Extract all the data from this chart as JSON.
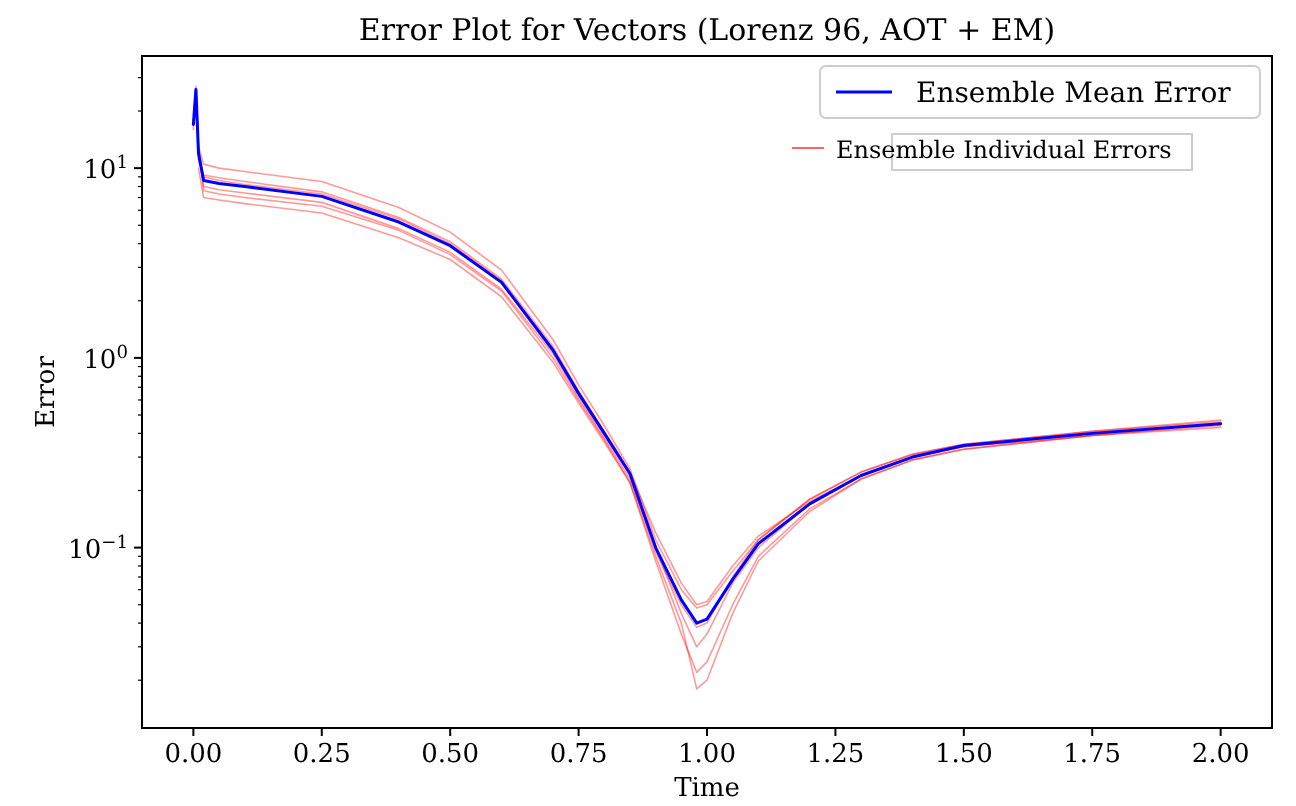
{
  "chart_data": {
    "type": "line",
    "title": "Error Plot for Vectors (Lorenz 96, AOT + EM)",
    "xlabel": "Time",
    "ylabel": "Error",
    "log": "y",
    "grid": false,
    "legend": "top right",
    "line_style": "solid",
    "marker": "none",
    "x": [
      0,
      0.005,
      0.01,
      0.02,
      0.05,
      0.1,
      0.25,
      0.4,
      0.5,
      0.6,
      0.7,
      0.75,
      0.8,
      0.85,
      0.9,
      0.95,
      0.98,
      1.0,
      1.05,
      1.1,
      1.2,
      1.3,
      1.4,
      1.5,
      1.75,
      2.0
    ],
    "xlim": [
      -0.1,
      2.1
    ],
    "xticks": [
      {
        "value": 0,
        "label": "0.00"
      },
      {
        "value": 0.25,
        "label": "0.25"
      },
      {
        "value": 0.5,
        "label": "0.50"
      },
      {
        "value": 0.75,
        "label": "0.75"
      },
      {
        "value": 1,
        "label": "1.00"
      },
      {
        "value": 1.25,
        "label": "1.25"
      },
      {
        "value": 1.5,
        "label": "1.50"
      },
      {
        "value": 1.75,
        "label": "1.75"
      },
      {
        "value": 2,
        "label": "2.00"
      }
    ],
    "ylim": [
      0.0112,
      39
    ],
    "yticks": [
      {
        "value": 0.02,
        "label": null
      },
      {
        "value": 0.03,
        "label": null
      },
      {
        "value": 0.04,
        "label": null
      },
      {
        "value": 0.05,
        "label": null
      },
      {
        "value": 0.06,
        "label": null
      },
      {
        "value": 0.07,
        "label": null
      },
      {
        "value": 0.08,
        "label": null
      },
      {
        "value": 0.09,
        "label": null
      },
      {
        "value": 0.1,
        "label": "10$^{−1}$"
      },
      {
        "value": 0.2,
        "label": null
      },
      {
        "value": 0.3,
        "label": null
      },
      {
        "value": 0.4,
        "label": null
      },
      {
        "value": 0.5,
        "label": null
      },
      {
        "value": 0.6,
        "label": null
      },
      {
        "value": 0.7,
        "label": null
      },
      {
        "value": 0.8,
        "label": null
      },
      {
        "value": 0.9,
        "label": null
      },
      {
        "value": 1,
        "label": "10$^{0}$"
      },
      {
        "value": 2,
        "label": null
      },
      {
        "value": 3,
        "label": null
      },
      {
        "value": 4,
        "label": null
      },
      {
        "value": 5,
        "label": null
      },
      {
        "value": 6,
        "label": null
      },
      {
        "value": 7,
        "label": null
      },
      {
        "value": 8,
        "label": null
      },
      {
        "value": 9,
        "label": null
      },
      {
        "value": 10,
        "label": "10$^{1}$"
      },
      {
        "value": 20,
        "label": null
      },
      {
        "value": 30,
        "label": null
      }
    ],
    "series": [
      {
        "name": "Ensemble Mean Error",
        "color": "#0000ff",
        "values": [
          17,
          26,
          12,
          8.6,
          8.3,
          8.0,
          7.1,
          5.2,
          3.9,
          2.5,
          1.1,
          0.65,
          0.4,
          0.245,
          0.1,
          0.053,
          0.04,
          0.042,
          0.068,
          0.105,
          0.17,
          0.24,
          0.3,
          0.345,
          0.4,
          0.45
        ]
      },
      {
        "name": "Ensemble Individual Errors",
        "color": "#ff0000",
        "values": [
          null,
          null,
          13,
          10.5,
          10,
          9.6,
          8.5,
          6.2,
          4.6,
          2.9,
          1.25,
          0.72,
          0.44,
          0.26,
          0.11,
          0.06,
          0.048,
          0.05,
          0.075,
          0.11,
          0.18,
          0.25,
          0.31,
          0.35,
          0.41,
          0.46
        ]
      },
      {
        "color": "#ff0000",
        "values": [
          null,
          null,
          10,
          7.0,
          6.8,
          6.5,
          5.8,
          4.3,
          3.3,
          2.1,
          0.95,
          0.58,
          0.36,
          0.22,
          0.085,
          0.035,
          0.022,
          0.025,
          0.05,
          0.09,
          0.16,
          0.23,
          0.29,
          0.33,
          0.39,
          0.44
        ]
      },
      {
        "color": "#ff0000",
        "values": [
          16,
          25,
          11,
          9.2,
          8.9,
          8.5,
          7.5,
          5.5,
          4.1,
          2.6,
          1.15,
          0.67,
          0.41,
          0.25,
          0.1,
          0.045,
          0.03,
          0.035,
          0.065,
          0.1,
          0.17,
          0.24,
          0.3,
          0.34,
          0.4,
          0.45
        ]
      },
      {
        "color": "#ff0000",
        "values": [
          17,
          27,
          12,
          8.0,
          7.7,
          7.4,
          6.6,
          4.8,
          3.6,
          2.3,
          1.05,
          0.62,
          0.38,
          0.23,
          0.095,
          0.05,
          0.038,
          0.04,
          0.07,
          0.11,
          0.18,
          0.25,
          0.31,
          0.35,
          0.41,
          0.47
        ]
      },
      {
        "color": "#ff0000",
        "values": [
          null,
          null,
          12,
          9.0,
          8.6,
          8.2,
          7.3,
          5.4,
          4.0,
          2.55,
          1.1,
          0.66,
          0.41,
          0.25,
          0.12,
          0.065,
          0.05,
          0.052,
          0.08,
          0.115,
          0.175,
          0.24,
          0.3,
          0.34,
          0.39,
          0.43
        ]
      },
      {
        "color": "#ff0000",
        "values": [
          null,
          26,
          13,
          7.6,
          7.3,
          7.0,
          6.3,
          4.7,
          3.5,
          2.25,
          1.0,
          0.6,
          0.37,
          0.22,
          0.09,
          0.04,
          0.018,
          0.02,
          0.045,
          0.085,
          0.155,
          0.23,
          0.29,
          0.33,
          0.39,
          0.45
        ]
      }
    ]
  }
}
